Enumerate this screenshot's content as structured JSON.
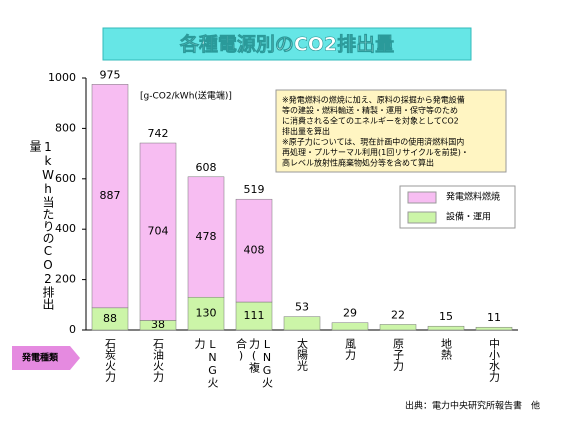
{
  "chart_data": {
    "type": "stacked_bar",
    "title": "各種電源別のCO2排出量",
    "unit": "[g-CO2/kWh(送電端)]",
    "y_label": "1kWh当たりのCO2排出量",
    "x_label": "発電種類",
    "notes": [
      "※発電燃料の燃焼に加え、原料の採掘から発電設備",
      "等の建設・燃料輸送・精製・運用・保守等のため",
      "に消費される全てのエネルギーを対象としてCO2",
      "排出量を算出",
      "※原子力については、現在計画中の使用済燃料国内",
      "再処理・プルサーマル利用(1回リサイクルを前提)・",
      "高レベル放射性廃棄物処分等を含めて算出"
    ],
    "source": "出典：電力中央研究所報告書　他",
    "categories": [
      "石炭火力",
      "石油火力",
      "LNG火力",
      "LNG火力(複合)",
      "太陽光",
      "風力",
      "原子力",
      "地熱",
      "中小水力"
    ],
    "series": [
      {
        "name": "設備・運用",
        "color": "#ccf5a8",
        "values": [
          88,
          38,
          130,
          111,
          53,
          29,
          22,
          15,
          11
        ]
      },
      {
        "name": "発電燃料燃焼",
        "color": "#f7bdf2",
        "values": [
          887,
          704,
          478,
          408,
          null,
          null,
          null,
          null,
          null
        ]
      }
    ],
    "totals": [
      975,
      742,
      608,
      519,
      null,
      null,
      null,
      null,
      null
    ],
    "ylim": [
      0,
      1000
    ],
    "yticks": [
      0,
      200,
      400,
      600,
      800,
      1000
    ],
    "grid": false
  }
}
